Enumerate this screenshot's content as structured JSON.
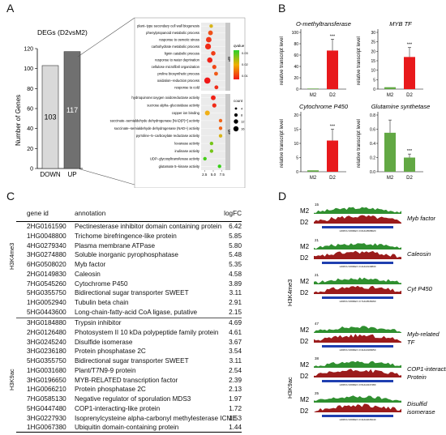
{
  "panels": {
    "a": "A",
    "b": "B",
    "c": "C",
    "d": "D"
  },
  "panelA": {
    "bar_title": "DEGs (D2vsM2)",
    "ylabel": "Number of Genes",
    "yticks": [
      "0",
      "20",
      "40",
      "60",
      "80",
      "100",
      "120"
    ],
    "bars": [
      {
        "label": "DOWN",
        "value": 103,
        "value_label": "103",
        "color": "#d9d9d9"
      },
      {
        "label": "UP",
        "value": 117,
        "value_label": "117",
        "color": "#707070"
      }
    ],
    "bp_terms": [
      {
        "term": "plant−type secondary cell wall biogenesis",
        "ratio": 4.4,
        "count": 2,
        "q": 0.02
      },
      {
        "term": "phenylpropanoid metabolic process",
        "ratio": 4.2,
        "count": 6,
        "q": 0.008
      },
      {
        "term": "response to osmotic stress",
        "ratio": 3.7,
        "count": 10,
        "q": 0.005
      },
      {
        "term": "carbohydrate metabolic process",
        "ratio": 3.5,
        "count": 12,
        "q": 0.004
      },
      {
        "term": "lignin catabolic process",
        "ratio": 5.0,
        "count": 5,
        "q": 0.006
      },
      {
        "term": "response to water deprivation",
        "ratio": 4.0,
        "count": 9,
        "q": 0.003
      },
      {
        "term": "cellulose microfibril organization",
        "ratio": 5.3,
        "count": 4,
        "q": 0.007
      },
      {
        "term": "proline biosynthetic process",
        "ratio": 5.8,
        "count": 3,
        "q": 0.009
      },
      {
        "term": "oxidation−reduction process",
        "ratio": 3.3,
        "count": 14,
        "q": 0.002
      },
      {
        "term": "response to cold",
        "ratio": 5.9,
        "count": 3,
        "q": 0.004
      }
    ],
    "mf_terms": [
      {
        "term": "hydroquinone:oxygen oxidoreductase activity",
        "ratio": 5.0,
        "count": 6,
        "q": 0.003
      },
      {
        "term": "sucrose alpha−glucosidase activity",
        "ratio": 5.3,
        "count": 4,
        "q": 0.004
      },
      {
        "term": "copper ion binding",
        "ratio": 3.3,
        "count": 7,
        "q": 0.018
      },
      {
        "term": "succinate−semialdehyde dehydrogenase [NAD(P)+] activity",
        "ratio": 7.1,
        "count": 2,
        "q": 0.01
      },
      {
        "term": "succinate−semialdehyde dehydrogenase (NAD+) activity",
        "ratio": 7.1,
        "count": 2,
        "q": 0.01
      },
      {
        "term": "pyrroline−5−carboxylate reductase activity",
        "ratio": 7.1,
        "count": 2,
        "q": 0.02
      },
      {
        "term": "levanase activity",
        "ratio": 4.5,
        "count": 2,
        "q": 0.028
      },
      {
        "term": "inulinase activity",
        "ratio": 4.5,
        "count": 2,
        "q": 0.028
      },
      {
        "term": "UDP−glycosyltransferase activity",
        "ratio": 2.6,
        "count": 2,
        "q": 0.032
      },
      {
        "term": "glutamate 5−kinase activity",
        "ratio": 6.8,
        "count": 2,
        "q": 0.033
      }
    ],
    "facet_bp": "BP",
    "facet_mf": "MF",
    "xticks": [
      "2.5",
      "5.0",
      "7.5"
    ],
    "legend_q_title": "qvalue",
    "legend_q_ticks": [
      "0.03",
      "0.02",
      "0.01"
    ],
    "legend_count_title": "count",
    "legend_count_items": [
      "4",
      "8",
      "12",
      "16"
    ]
  },
  "panelB": {
    "ylabel": "relative transcript level",
    "charts": [
      {
        "title": "O-methyltransferase",
        "yticks": [
          "0",
          "20",
          "40",
          "60",
          "80",
          "100"
        ],
        "ymax": 100,
        "m2": 1,
        "d2": 68,
        "err": 20,
        "sig": "***",
        "color": "#e8191b"
      },
      {
        "title": "MYB TF",
        "yticks": [
          "0",
          "5",
          "10",
          "15",
          "20",
          "25",
          "30"
        ],
        "ymax": 30,
        "m2": 1,
        "d2": 17,
        "err": 5,
        "sig": "***",
        "color": "#e8191b"
      },
      {
        "title": "Cytochrome P450",
        "yticks": [
          "0",
          "5",
          "10",
          "15",
          "20"
        ],
        "ymax": 20,
        "m2": 0.5,
        "d2": 11,
        "err": 4,
        "sig": "***",
        "color": "#e8191b"
      },
      {
        "title": "Glutamine synthetase",
        "yticks": [
          "0.0",
          "0.2",
          "0.4",
          "0.6",
          "0.8"
        ],
        "ymax": 0.8,
        "m2": 0.55,
        "d2": 0.2,
        "err": 0.05,
        "m2err": 0.18,
        "sig": "***",
        "color": "#62a844",
        "inverse": true
      }
    ],
    "xcats": [
      "M2",
      "D2"
    ]
  },
  "panelC": {
    "headers": {
      "gid": "gene id",
      "ann": "annotation",
      "lfc": "logFC"
    },
    "group1": "H3K4me3",
    "group2": "H3K9ac",
    "rows1": [
      [
        "2HG0161590",
        "Pectinesterase inhibitor domain containing protein",
        "6.42"
      ],
      [
        "1HG0048800",
        "Trichome birefringence-like protein",
        "5.85"
      ],
      [
        "4HG0279340",
        "Plasma membrane ATPase",
        "5.80"
      ],
      [
        "3HG0274880",
        "Soluble inorganic pyrophosphatase",
        "5.48"
      ],
      [
        "6HG0508020",
        "Myb factor",
        "5.35"
      ],
      [
        "2HG0149830",
        "Caleosin",
        "4.58"
      ],
      [
        "7HG0545260",
        "Cytochrome P450",
        "3.89"
      ],
      [
        "5HG0355750",
        "Bidirectional sugar transporter SWEET",
        "3.11"
      ],
      [
        "1HG0052940",
        "Tubulin beta chain",
        "2.91"
      ],
      [
        "5HG0443600",
        "Long-chain-fatty-acid CoA ligase, putative",
        "2.15"
      ]
    ],
    "rows2": [
      [
        "3HG0184880",
        "Trypsin inhibitor",
        "4.69"
      ],
      [
        "2HG0126480",
        "Photosystem II 10 kDa polypeptide family protein",
        "4.61"
      ],
      [
        "3HG0245240",
        "Disulfide isomerase",
        "3.67"
      ],
      [
        "3HG0236180",
        "Protein phosphatase 2C",
        "3.54"
      ],
      [
        "5HG0355750",
        "Bidirectional sugar transporter SWEET",
        "3.11"
      ],
      [
        "1HG0031680",
        "Plant/T7N9-9 protein",
        "2.54"
      ],
      [
        "3HG0196650",
        "MYB-RELATED transcription factor",
        "2.39"
      ],
      [
        "1HG0066210",
        "Protein phosphatase 2C",
        "2.13"
      ],
      [
        "7HG0585130",
        "Negative regulator of sporulation MDS3",
        "1.97"
      ],
      [
        "5HG0447480",
        "COP1-interacting-like protein",
        "1.72"
      ],
      [
        "3HG0227930",
        "Isoprenylcysteine alpha-carbonyl methylesterase ICME",
        "1.53"
      ],
      [
        "1HG0067380",
        "Ubiquitin domain-containing protein",
        "1.44"
      ]
    ]
  },
  "panelD": {
    "group1": "H3K4me3",
    "group2": "H3K9ac",
    "tracks": [
      {
        "m2": "M2",
        "d2": "D2",
        "scale": "15",
        "label": "Myb factor",
        "gene": "HORVU.MOREX.r3.6HG0508020"
      },
      {
        "m2": "M2",
        "d2": "D2",
        "scale": "21",
        "label": "Caleosin",
        "gene": "HORVU.MOREX.r3.2HG0149830"
      },
      {
        "m2": "M2",
        "d2": "D2",
        "scale": "21",
        "label": "Cyt P450",
        "gene": "HORVU.MOREX.r3.7HG0545260"
      },
      {
        "m2": "M2",
        "d2": "D2",
        "scale": "47",
        "label": "Myb-related TF",
        "gene": "HORVU.MOREX.r3.3HG0196650"
      },
      {
        "m2": "M2",
        "d2": "D2",
        "scale": "38",
        "label": "COP1-interacting-like Protein",
        "gene": "HORVU.MOREX.r3.5HG0447480"
      },
      {
        "m2": "M2",
        "d2": "D2",
        "scale": "25",
        "label": "Disulfid isomerase",
        "gene": "HORVU.MOREX.r3.3HG0245240"
      }
    ]
  }
}
